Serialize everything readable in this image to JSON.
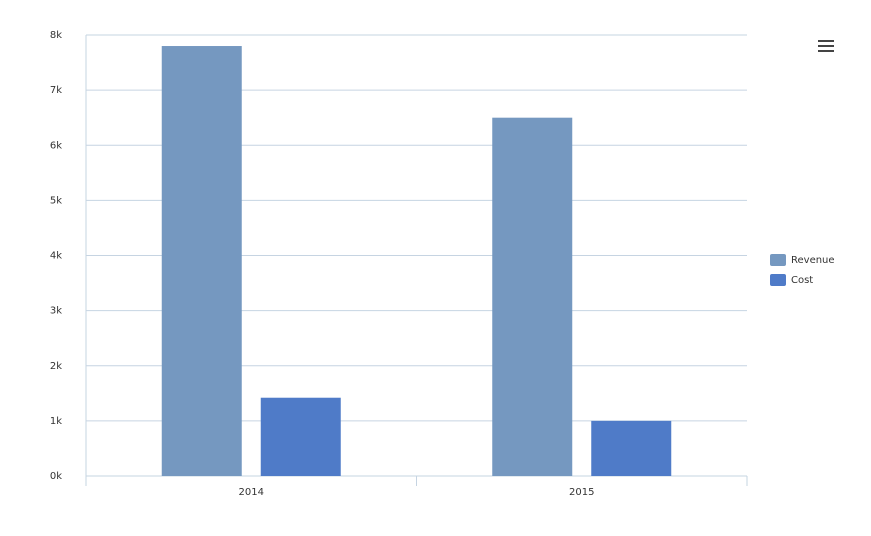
{
  "chart_data": {
    "type": "bar",
    "categories": [
      "2014",
      "2015"
    ],
    "series": [
      {
        "name": "Revenue",
        "color": "#7598c0",
        "values": [
          7800,
          6500
        ]
      },
      {
        "name": "Cost",
        "color": "#4f7bc8",
        "values": [
          1420,
          1000
        ]
      }
    ],
    "ylim": [
      0,
      8000
    ],
    "yticks": [
      {
        "value": 0,
        "label": "0k"
      },
      {
        "value": 1000,
        "label": "1k"
      },
      {
        "value": 2000,
        "label": "2k"
      },
      {
        "value": 3000,
        "label": "3k"
      },
      {
        "value": 4000,
        "label": "4k"
      },
      {
        "value": 5000,
        "label": "5k"
      },
      {
        "value": 6000,
        "label": "6k"
      },
      {
        "value": 7000,
        "label": "7k"
      },
      {
        "value": 8000,
        "label": "8k"
      }
    ],
    "grid": true,
    "legend": "right"
  }
}
